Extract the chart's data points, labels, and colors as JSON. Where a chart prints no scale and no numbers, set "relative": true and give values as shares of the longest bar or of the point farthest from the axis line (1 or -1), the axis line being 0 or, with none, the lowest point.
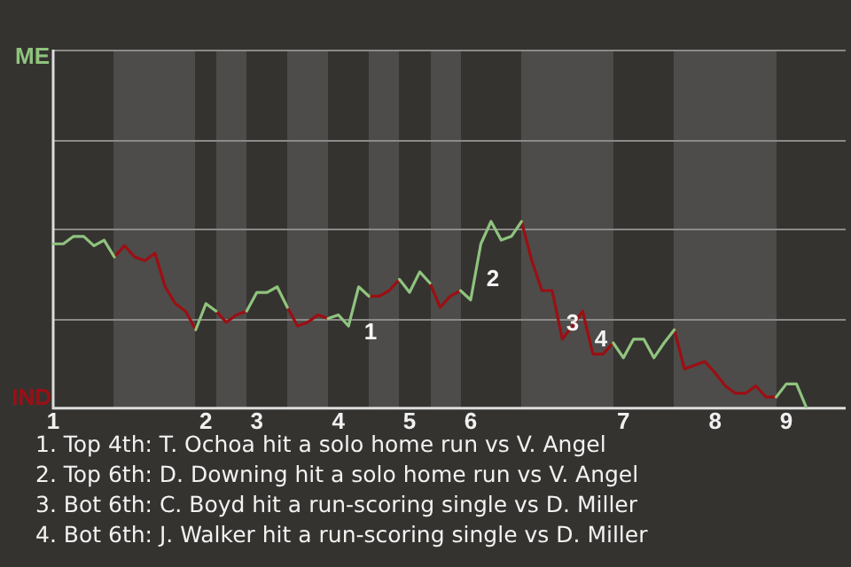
{
  "chart_data": {
    "type": "line",
    "relative": true,
    "categories": [
      "1",
      null,
      null,
      null,
      null,
      null,
      null,
      null,
      null,
      null,
      null,
      null,
      null,
      null,
      null,
      "2",
      null,
      null,
      null,
      null,
      "3",
      null,
      null,
      null,
      null,
      null,
      null,
      null,
      "4",
      null,
      null,
      null,
      null,
      null,
      null,
      "5",
      null,
      null,
      null,
      null,
      null,
      "6",
      null,
      null,
      null,
      null,
      null,
      null,
      null,
      null,
      null,
      null,
      null,
      null,
      null,
      null,
      "7",
      null,
      null,
      null,
      null,
      null,
      null,
      null,
      null,
      "8",
      null,
      null,
      null,
      null,
      null,
      null,
      "9",
      null,
      null
    ],
    "series": [
      {
        "color": "#8fc47e",
        "values": [
          0.88,
          0.88,
          0.92,
          0.92,
          0.87,
          0.9,
          0.81,
          null,
          null,
          null,
          null,
          null,
          null,
          null,
          0.42,
          0.56,
          0.52,
          null,
          null,
          0.52,
          0.62,
          0.62,
          0.65,
          0.54,
          null,
          null,
          null,
          0.48,
          0.5,
          0.44,
          0.65,
          0.6,
          null,
          null,
          0.69,
          0.62,
          0.73,
          0.67,
          null,
          null,
          0.63,
          0.58,
          0.88,
          1,
          0.9,
          0.92,
          1,
          null,
          null,
          null,
          null,
          null,
          null,
          null,
          null,
          0.35,
          0.27,
          0.37,
          0.37,
          0.27,
          0.35,
          0.42,
          null,
          null,
          null,
          null,
          null,
          null,
          null,
          null,
          null,
          0.06,
          0.13,
          0.13,
          0
        ]
      },
      {
        "color": "#9b0f14",
        "values": [
          null,
          null,
          null,
          null,
          null,
          null,
          0.81,
          0.87,
          0.81,
          0.79,
          0.83,
          0.65,
          0.56,
          0.52,
          0.42,
          null,
          0.52,
          0.46,
          0.5,
          0.52,
          null,
          null,
          null,
          0.54,
          0.44,
          0.46,
          0.5,
          0.48,
          null,
          null,
          null,
          0.6,
          0.6,
          0.63,
          0.69,
          null,
          null,
          0.67,
          0.54,
          0.6,
          0.63,
          null,
          null,
          null,
          null,
          null,
          1,
          0.79,
          0.63,
          0.63,
          0.37,
          0.44,
          0.52,
          0.29,
          0.29,
          0.35,
          null,
          null,
          null,
          null,
          null,
          0.42,
          0.21,
          0.23,
          0.25,
          0.19,
          0.12,
          0.08,
          0.08,
          0.12,
          0.06,
          0.06,
          null,
          null,
          null
        ]
      }
    ],
    "ref_lines": [
      {
        "axis": "y",
        "value": 0.48,
        "color": "#8a8a88"
      },
      {
        "axis": "y",
        "value": 0.96,
        "color": "#8a8a88"
      },
      {
        "axis": "y",
        "value": 1.44,
        "color": "#8a8a88"
      },
      {
        "axis": "y",
        "value": 1.92,
        "color": "#8a8a88"
      }
    ],
    "legend": false,
    "marker": "none",
    "line_style": "solid",
    "annotations": [
      "ME",
      "IND",
      "1",
      "2",
      "3",
      "4",
      "1. Top 4th: T. Ochoa hit a solo home run vs V. Angel",
      "2. Top 6th: D. Downing hit a solo home run vs V. Angel",
      "3. Bot 6th: C. Boyd hit a run-scoring single vs D. Miller",
      "4. Bot 6th: J. Walker hit a run-scoring single vs D. Miller"
    ]
  }
}
